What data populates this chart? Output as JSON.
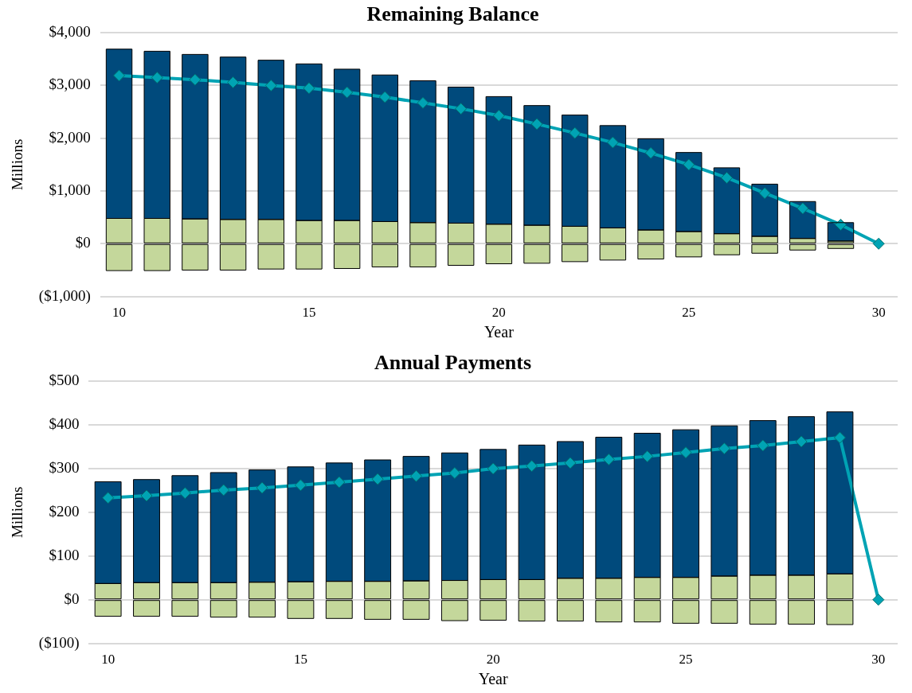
{
  "chart_data": [
    {
      "type": "bar",
      "title": "Remaining Balance",
      "xlabel": "Year",
      "ylabel": "Millions",
      "stacked": true,
      "grid": "y",
      "legend": false,
      "marker": "diamond",
      "line_style": "solid",
      "categories": [
        "10",
        null,
        null,
        null,
        null,
        "15",
        null,
        null,
        null,
        null,
        "20",
        null,
        null,
        null,
        null,
        "25",
        null,
        null,
        null,
        null,
        "30"
      ],
      "ylim": [
        -1000,
        4000
      ],
      "yticks": [
        {
          "value": -1000,
          "label": "($1,000)"
        },
        {
          "value": 0,
          "label": "$0"
        },
        {
          "value": 1000,
          "label": "$1,000"
        },
        {
          "value": 2000,
          "label": "$2,000"
        },
        {
          "value": 3000,
          "label": "$3,000"
        },
        {
          "value": 4000,
          "label": "$4,000"
        }
      ],
      "series": [
        {
          "color": "#c4d79b",
          "values": [
            -510,
            -510,
            -500,
            -500,
            -480,
            -480,
            -470,
            -440,
            -440,
            -410,
            -380,
            -370,
            -340,
            -310,
            -290,
            -250,
            -210,
            -180,
            -120,
            -90,
            null
          ]
        },
        {
          "color": "#c4d79b",
          "values": [
            480,
            480,
            470,
            460,
            460,
            440,
            440,
            420,
            400,
            390,
            370,
            350,
            330,
            300,
            260,
            230,
            190,
            140,
            100,
            50,
            null
          ]
        },
        {
          "color": "#004a7c",
          "values": [
            3210,
            3170,
            3120,
            3080,
            3020,
            2970,
            2870,
            2780,
            2690,
            2580,
            2420,
            2270,
            2110,
            1940,
            1730,
            1500,
            1250,
            990,
            700,
            350,
            null
          ]
        },
        {
          "type": "line",
          "color": "#00a3b4",
          "values": [
            3190,
            3150,
            3110,
            3060,
            3000,
            2950,
            2870,
            2780,
            2670,
            2560,
            2430,
            2270,
            2100,
            1920,
            1720,
            1500,
            1250,
            960,
            670,
            360,
            0
          ]
        }
      ]
    },
    {
      "type": "bar",
      "title": "Annual Payments",
      "xlabel": "Year",
      "ylabel": "Millions",
      "stacked": true,
      "grid": "y",
      "legend": false,
      "marker": "diamond",
      "line_style": "solid",
      "categories": [
        "10",
        null,
        null,
        null,
        null,
        "15",
        null,
        null,
        null,
        null,
        "20",
        null,
        null,
        null,
        null,
        "25",
        null,
        null,
        null,
        null,
        "30"
      ],
      "ylim": [
        -100,
        500
      ],
      "yticks": [
        {
          "value": -100,
          "label": "($100)"
        },
        {
          "value": 0,
          "label": "$0"
        },
        {
          "value": 100,
          "label": "$100"
        },
        {
          "value": 200,
          "label": "$200"
        },
        {
          "value": 300,
          "label": "$300"
        },
        {
          "value": 400,
          "label": "$400"
        },
        {
          "value": 500,
          "label": "$500"
        }
      ],
      "series": [
        {
          "color": "#c4d79b",
          "values": [
            -38,
            -38,
            -38,
            -40,
            -40,
            -43,
            -43,
            -45,
            -45,
            -48,
            -47,
            -49,
            -49,
            -51,
            -51,
            -54,
            -54,
            -56,
            -56,
            -57,
            null
          ]
        },
        {
          "color": "#c4d79b",
          "values": [
            37,
            39,
            39,
            39,
            40,
            41,
            42,
            42,
            43,
            44,
            46,
            46,
            49,
            49,
            51,
            51,
            54,
            56,
            56,
            59,
            null
          ]
        },
        {
          "color": "#004a7c",
          "values": [
            233,
            236,
            245,
            252,
            257,
            263,
            271,
            278,
            285,
            292,
            298,
            308,
            313,
            323,
            330,
            338,
            344,
            354,
            363,
            371,
            null
          ]
        },
        {
          "type": "line",
          "color": "#00a3b4",
          "values": [
            233,
            238,
            244,
            251,
            256,
            262,
            269,
            276,
            283,
            290,
            300,
            306,
            313,
            321,
            328,
            337,
            346,
            353,
            362,
            371,
            0
          ]
        }
      ]
    }
  ]
}
